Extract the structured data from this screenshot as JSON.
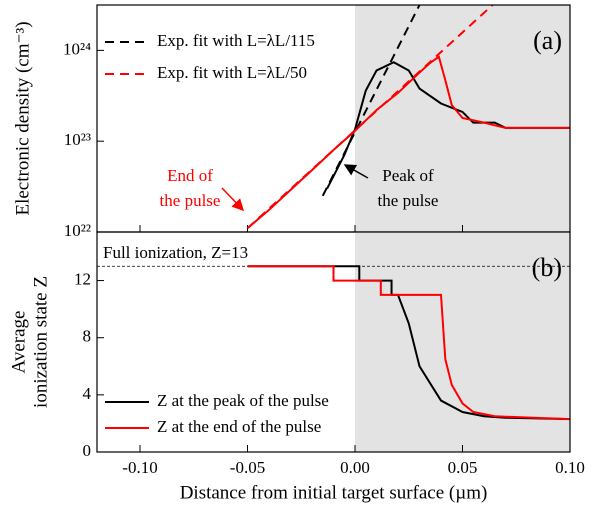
{
  "chart_data": [
    {
      "type": "line",
      "panel_label": "(a)",
      "ylabel": "Electronic density (cm⁻³)",
      "log_y": true,
      "xlim": [
        -0.12,
        0.1
      ],
      "xticks": [
        -0.1,
        -0.05,
        0,
        0.05,
        0.1
      ],
      "ylim": [
        1e+22,
        3.16e+24
      ],
      "yticks": [
        {
          "value": 1e+22,
          "label": "10²²"
        },
        {
          "value": 1e+23,
          "label": "10²³"
        },
        {
          "value": 1e+24,
          "label": "10²⁴"
        }
      ],
      "shade_from": 0,
      "legend": "upper left",
      "series": [
        {
          "name": "Exp. fit with L=λL/115",
          "color": "#000000",
          "dash": true,
          "x": [
            -0.015,
            0.03
          ],
          "values": [
            2.5e+22,
            3.16e+24
          ]
        },
        {
          "name": "Exp. fit with L=λL/50",
          "color": "#ff0000",
          "dash": true,
          "x": [
            -0.05,
            0.064
          ],
          "values": [
            1.1e+22,
            3.16e+24
          ]
        },
        {
          "color": "#000000",
          "x": [
            -0.013,
            -0.005,
            0,
            0.005,
            0.01,
            0.018,
            0.025,
            0.03,
            0.04,
            0.05,
            0.055,
            0.065,
            0.07,
            0.1
          ],
          "values": [
            3e+22,
            7e+22,
            1.35e+23,
            3.6e+23,
            6e+23,
            7.4e+23,
            6e+23,
            3.8e+23,
            2.6e+23,
            2.1e+23,
            1.6e+23,
            1.6e+23,
            1.4e+23,
            1.4e+23
          ]
        },
        {
          "color": "#ff0000",
          "x": [
            -0.05,
            -0.04,
            -0.03,
            -0.02,
            -0.01,
            0,
            0.01,
            0.02,
            0.03,
            0.035,
            0.039,
            0.042,
            0.045,
            0.05,
            0.06,
            0.07,
            0.1
          ],
          "values": [
            1.1e+22,
            1.75e+22,
            2.9e+22,
            4.8e+22,
            8e+22,
            1.3e+23,
            2.2e+23,
            3.4e+23,
            5.7e+23,
            7.3e+23,
            8.5e+23,
            4.7e+23,
            2.5e+23,
            1.8e+23,
            1.6e+23,
            1.4e+23,
            1.4e+23
          ]
        }
      ],
      "annotations": [
        {
          "lines": [
            "End of",
            "the pulse"
          ],
          "color": "#ff0000"
        },
        {
          "lines": [
            "Peak of",
            "the pulse"
          ],
          "color": "#000000"
        }
      ]
    },
    {
      "type": "line",
      "panel_label": "(b)",
      "ylabel": [
        "Average",
        "ionization state Z"
      ],
      "xlabel": "Distance from initial target surface (µm)",
      "xlim": [
        -0.12,
        0.1
      ],
      "xticks": [
        {
          "value": -0.1,
          "label": "-0.10"
        },
        {
          "value": -0.05,
          "label": "-0.05"
        },
        {
          "value": 0,
          "label": "0.00"
        },
        {
          "value": 0.05,
          "label": "0.05"
        },
        {
          "value": 0.1,
          "label": "0.10"
        }
      ],
      "ylim": [
        0,
        15.4
      ],
      "yticks": [
        0,
        4,
        8,
        12
      ],
      "shade_from": 0,
      "legend": "lower left",
      "reference_line": {
        "value": 13,
        "label": "Full ionization, Z=13"
      },
      "series": [
        {
          "name": "Z at the peak of the pulse",
          "color": "#000000",
          "x": [
            -0.05,
            0.002,
            0.002,
            0.017,
            0.017,
            0.02,
            0.025,
            0.03,
            0.035,
            0.04,
            0.05,
            0.06,
            0.07,
            0.1
          ],
          "values": [
            13,
            13,
            12,
            12,
            11,
            11,
            9,
            6,
            4.8,
            3.6,
            2.8,
            2.5,
            2.4,
            2.3
          ]
        },
        {
          "name": "Z at the end of the pulse",
          "color": "#ff0000",
          "x": [
            -0.05,
            -0.01,
            -0.01,
            0.012,
            0.012,
            0.04,
            0.042,
            0.045,
            0.05,
            0.055,
            0.065,
            0.1
          ],
          "values": [
            13,
            13,
            12,
            12,
            11,
            11,
            6.5,
            4.7,
            3.4,
            2.8,
            2.5,
            2.3
          ]
        }
      ]
    }
  ]
}
